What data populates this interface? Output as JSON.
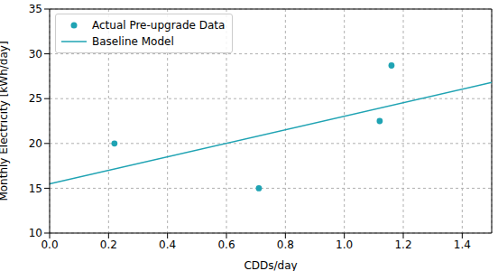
{
  "chart_data": {
    "type": "scatter",
    "x_label": "CDDs/day",
    "y_label": "Monthly Electricity [kWh/day]",
    "xlim": [
      0,
      1.5
    ],
    "xticks": [
      {
        "value": 0,
        "label": "0.0"
      },
      {
        "value": 0.2,
        "label": "0.2"
      },
      {
        "value": 0.4,
        "label": "0.4"
      },
      {
        "value": 0.6,
        "label": "0.6"
      },
      {
        "value": 0.8,
        "label": "0.8"
      },
      {
        "value": 1.0,
        "label": "1.0"
      },
      {
        "value": 1.2,
        "label": "1.2"
      },
      {
        "value": 1.4,
        "label": "1.4"
      }
    ],
    "ylim": [
      10,
      35
    ],
    "yticks": [
      10,
      15,
      20,
      25,
      30,
      35
    ],
    "grid": true,
    "legend": "upper left",
    "series": [
      {
        "name": "Actual Pre-upgrade Data",
        "type": "scatter",
        "marker": "circle",
        "color": "#1fa3b3",
        "x": [
          0.22,
          0.71,
          1.12,
          1.16
        ],
        "values": [
          20.0,
          15.0,
          22.5,
          28.7
        ]
      },
      {
        "name": "Baseline Model",
        "type": "line",
        "line_style": "solid",
        "color": "#1fa3b3",
        "x": [
          0,
          1.5
        ],
        "values": [
          15.5,
          26.8
        ]
      }
    ]
  }
}
